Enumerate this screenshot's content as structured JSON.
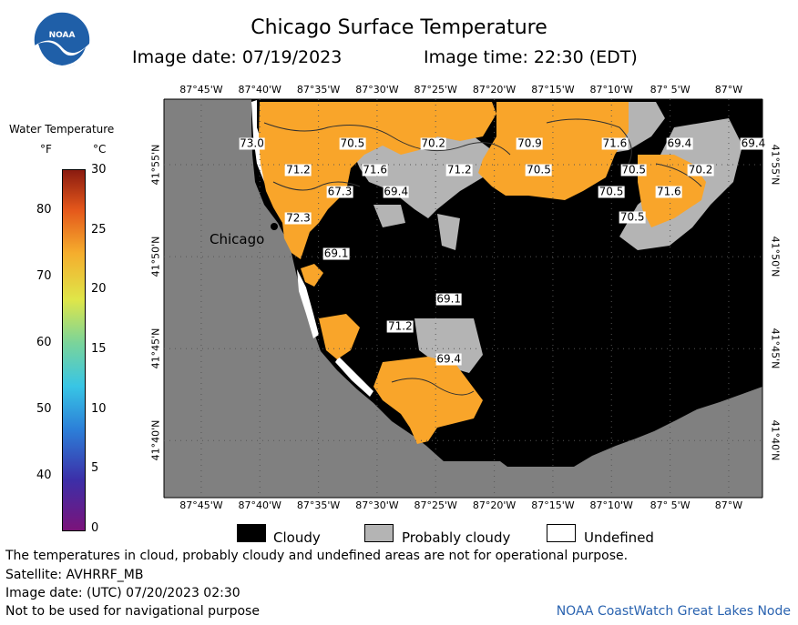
{
  "header": {
    "title": "Chicago Surface Temperature",
    "image_date_label": "Image date: 07/19/2023",
    "image_time_label": "Image time: 22:30 (EDT)",
    "logo_text": "NOAA"
  },
  "map": {
    "lon_labels": [
      "87°45'W",
      "87°40'W",
      "87°35'W",
      "87°30'W",
      "87°25'W",
      "87°20'W",
      "87°15'W",
      "87°10'W",
      "87° 5'W",
      "87°W"
    ],
    "lat_labels": [
      "41°55'N",
      "41°50'N",
      "41°45'N",
      "41°40'N"
    ],
    "city": "Chicago",
    "temperature_labels": [
      {
        "text": "73.0",
        "lon": -87.678,
        "lat": 41.936
      },
      {
        "text": "70.5",
        "lon": -87.535,
        "lat": 41.936
      },
      {
        "text": "70.2",
        "lon": -87.42,
        "lat": 41.936
      },
      {
        "text": "70.9",
        "lon": -87.283,
        "lat": 41.936
      },
      {
        "text": "71.6",
        "lon": -87.162,
        "lat": 41.936
      },
      {
        "text": "69.4",
        "lon": -87.07,
        "lat": 41.936
      },
      {
        "text": "69.4",
        "lon": -86.965,
        "lat": 41.936
      },
      {
        "text": "71.2",
        "lon": -87.612,
        "lat": 41.912
      },
      {
        "text": "71.6",
        "lon": -87.503,
        "lat": 41.912
      },
      {
        "text": "71.2",
        "lon": -87.383,
        "lat": 41.912
      },
      {
        "text": "70.5",
        "lon": -87.27,
        "lat": 41.912
      },
      {
        "text": "70.5",
        "lon": -87.135,
        "lat": 41.912
      },
      {
        "text": "70.2",
        "lon": -87.04,
        "lat": 41.912
      },
      {
        "text": "67.3",
        "lon": -87.553,
        "lat": 41.892
      },
      {
        "text": "69.4",
        "lon": -87.473,
        "lat": 41.892
      },
      {
        "text": "70.5",
        "lon": -87.167,
        "lat": 41.892
      },
      {
        "text": "71.6",
        "lon": -87.085,
        "lat": 41.892
      },
      {
        "text": "70.5",
        "lon": -87.137,
        "lat": 41.869
      },
      {
        "text": "72.3",
        "lon": -87.612,
        "lat": 41.868
      },
      {
        "text": "69.1",
        "lon": -87.558,
        "lat": 41.836
      },
      {
        "text": "69.1",
        "lon": -87.398,
        "lat": 41.795
      },
      {
        "text": "71.2",
        "lon": -87.467,
        "lat": 41.77
      },
      {
        "text": "69.4",
        "lon": -87.398,
        "lat": 41.74
      }
    ]
  },
  "colorbar": {
    "title": "Water Temperature",
    "unit_f": "°F",
    "unit_c": "°C",
    "f_ticks": [
      "80",
      "70",
      "60",
      "50",
      "40"
    ],
    "c_ticks": [
      "30",
      "25",
      "20",
      "15",
      "10",
      "5",
      "0"
    ]
  },
  "legend": {
    "cloudy": "Cloudy",
    "probably_cloudy": "Probably cloudy",
    "undefined": "Undefined"
  },
  "footer": {
    "line1": "The temperatures in cloud, probably cloudy and undefined areas are not for operational purpose.",
    "line2": "Satellite: AVHRRF_MB",
    "line3": "Image date: (UTC) 07/20/2023  02:30",
    "line4": "Not to be used for navigational purpose",
    "credit": "NOAA CoastWatch Great Lakes Node"
  },
  "colors": {
    "land": "#808080",
    "cloudy": "#000000",
    "probably_cloudy": "#b4b4b4",
    "warm_water": "#f9a52a"
  }
}
